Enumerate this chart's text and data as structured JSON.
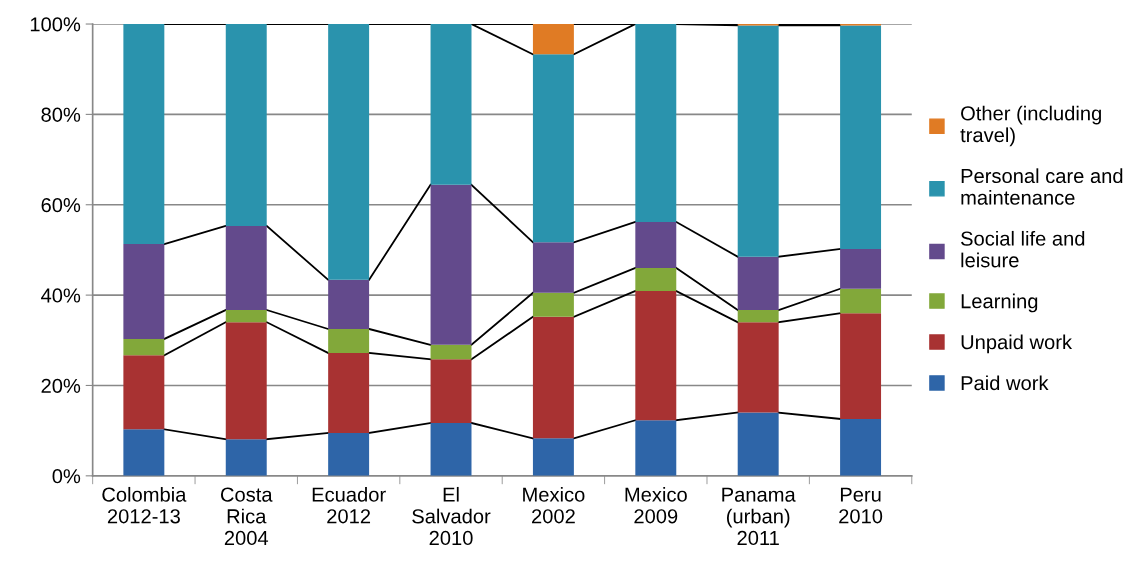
{
  "chart_data": {
    "type": "bar",
    "stacked": true,
    "categories": [
      "Colombia\n2012-13",
      "Costa\nRica\n2004",
      "Ecuador\n2012",
      "El\nSalvador\n2010",
      "Mexico\n2002",
      "Mexico\n2009",
      "Panama\n(urban)\n2011",
      "Peru\n2010"
    ],
    "series": [
      {
        "name": "Paid work",
        "color": "#2e65a8",
        "values": [
          10.3,
          8.1,
          9.5,
          11.7,
          8.3,
          12.3,
          14.0,
          12.6
        ]
      },
      {
        "name": "Unpaid work",
        "color": "#a83232",
        "values": [
          16.4,
          25.9,
          17.7,
          14.1,
          26.9,
          28.6,
          20.0,
          23.4
        ]
      },
      {
        "name": "Learning",
        "color": "#82a83a",
        "values": [
          3.6,
          2.7,
          5.3,
          3.2,
          5.3,
          5.1,
          2.7,
          5.4
        ]
      },
      {
        "name": "Social life and\nleisure",
        "color": "#634a8c",
        "values": [
          21.0,
          18.6,
          10.9,
          35.4,
          11.2,
          10.2,
          11.8,
          8.8
        ]
      },
      {
        "name": "Personal care and\nmaintenance",
        "color": "#2a93ad",
        "values": [
          48.7,
          44.7,
          56.6,
          35.6,
          41.6,
          43.8,
          51.2,
          49.5
        ]
      },
      {
        "name": "Other (including\ntravel)",
        "color": "#e07b24",
        "values": [
          0,
          0,
          0,
          0,
          6.7,
          0,
          0.3,
          0.3
        ]
      }
    ],
    "ylim": [
      0,
      100
    ],
    "yticks": [
      {
        "value": 0,
        "label": "0%"
      },
      {
        "value": 20,
        "label": "20%"
      },
      {
        "value": 40,
        "label": "40%"
      },
      {
        "value": 60,
        "label": "60%"
      },
      {
        "value": 80,
        "label": "80%"
      },
      {
        "value": 100,
        "label": "100%"
      }
    ],
    "grid": "y",
    "legend": "right"
  }
}
